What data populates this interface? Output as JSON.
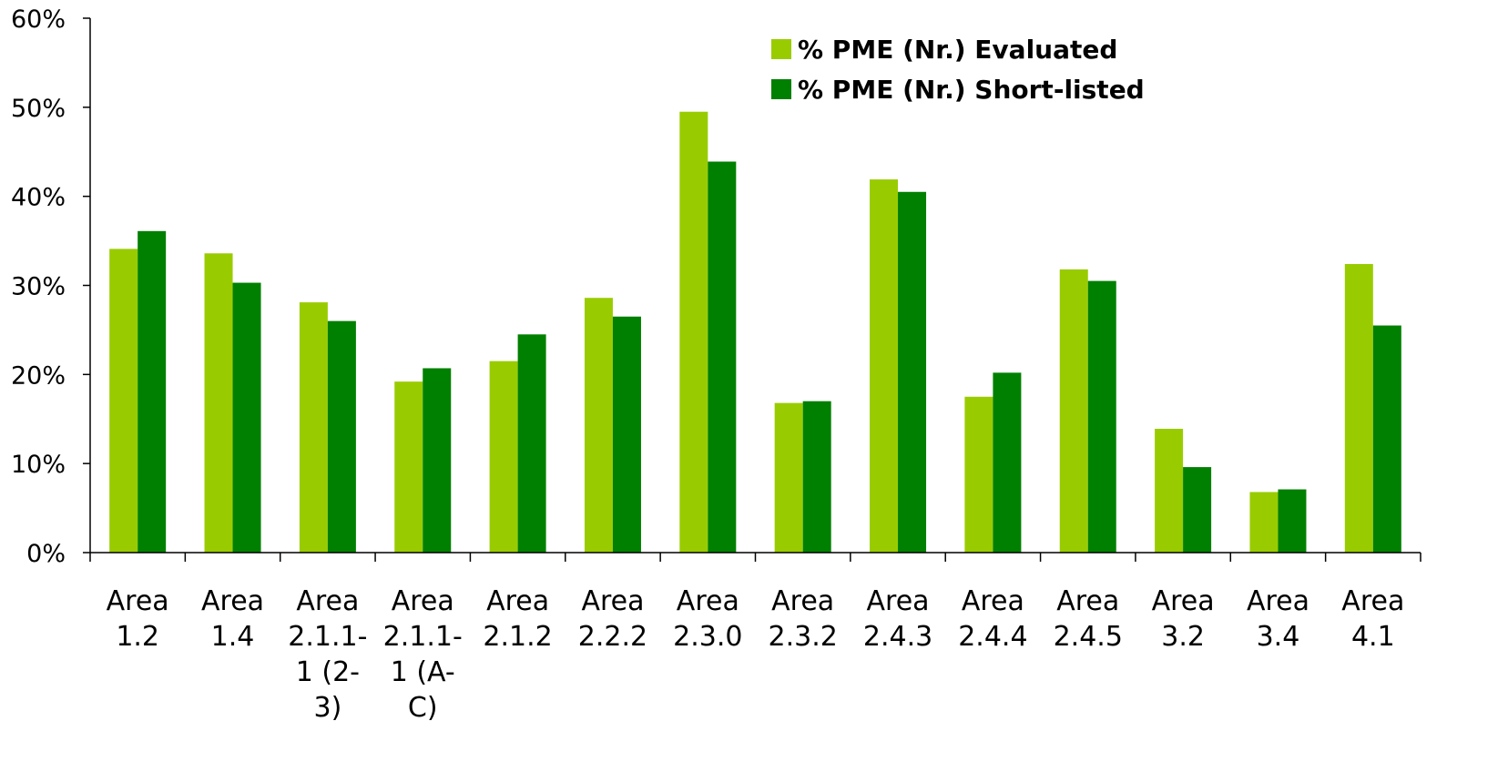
{
  "chart_data": {
    "type": "bar",
    "categories": [
      [
        "Area",
        "1.2"
      ],
      [
        "Area",
        "1.4"
      ],
      [
        "Area",
        "2.1.1-",
        "1 (2-",
        "3)"
      ],
      [
        "Area",
        "2.1.1-",
        "1 (A-",
        "C)"
      ],
      [
        "Area",
        "2.1.2"
      ],
      [
        "Area",
        "2.2.2"
      ],
      [
        "Area",
        "2.3.0"
      ],
      [
        "Area",
        "2.3.2"
      ],
      [
        "Area",
        "2.4.3"
      ],
      [
        "Area",
        "2.4.4"
      ],
      [
        "Area",
        "2.4.5"
      ],
      [
        "Area",
        "3.2"
      ],
      [
        "Area",
        "3.4"
      ],
      [
        "Area",
        "4.1"
      ]
    ],
    "series": [
      {
        "name": "% PME (Nr.) Evaluated",
        "color": "#99CC00",
        "values": [
          34.1,
          33.6,
          28.1,
          19.2,
          21.5,
          28.6,
          49.5,
          16.8,
          41.9,
          17.5,
          31.8,
          13.9,
          6.8,
          32.4
        ]
      },
      {
        "name": "% PME (Nr.) Short-listed",
        "color": "#008000",
        "values": [
          36.1,
          30.3,
          26.0,
          20.7,
          24.5,
          26.5,
          43.9,
          17.0,
          40.5,
          20.2,
          30.5,
          9.6,
          7.1,
          25.5
        ]
      }
    ],
    "yticks": [
      "0%",
      "10%",
      "20%",
      "30%",
      "40%",
      "50%",
      "60%"
    ],
    "ylim": [
      0,
      60
    ],
    "title": "",
    "xlabel": "",
    "ylabel": "",
    "grid": false,
    "legend_position": "top-right"
  }
}
